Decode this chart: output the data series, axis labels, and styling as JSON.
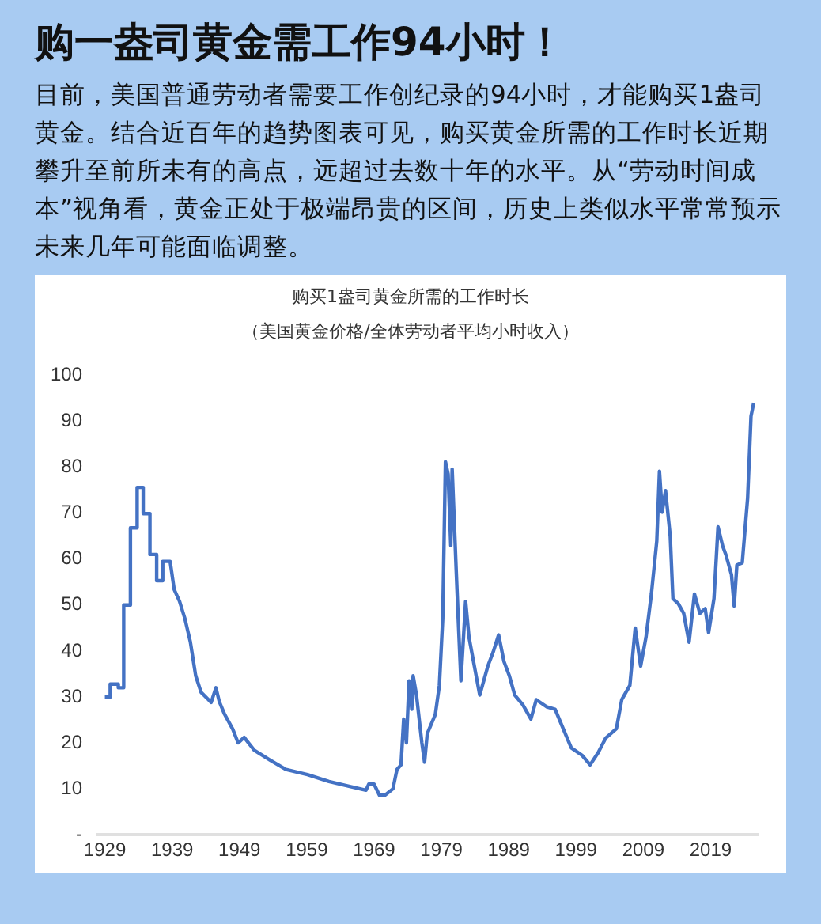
{
  "chart_data": {
    "type": "line",
    "title": "购一盎司黄金需工作94小时！",
    "subtitle": "目前，美国普通劳动者需要工作创纪录的94小时，才能购买1盎司黄金。结合近百年的趋势图表可见，购买黄金所需的工作时长近期攀升至前所未有的高点，远超过去数十年的水平。从“劳动时间成本”视角看，黄金正处于极端昂贵的区间，历史上类似水平常常预示未来几年可能面临调整。",
    "annotations": [
      "购买1盎司黄金所需的工作时长",
      "（美国黄金价格/全体劳动者平均小时收入）"
    ],
    "x": [
      1929,
      1929.8,
      1929.8,
      1931,
      1931,
      1931.8,
      1931.8,
      1932.8,
      1932.8,
      1933.8,
      1933.8,
      1934.7,
      1934.7,
      1935.7,
      1935.7,
      1936.7,
      1936.7,
      1937.6,
      1937.6,
      1938.7,
      1939.3,
      1940.1,
      1940.9,
      1941.7,
      1942.5,
      1943.3,
      1944.4,
      1944.8,
      1945.5,
      1946,
      1946.8,
      1948,
      1948.8,
      1949.7,
      1951.2,
      1953.5,
      1955.9,
      1959.1,
      1962.3,
      1965.4,
      1967.8,
      1968.2,
      1969,
      1969.8,
      1970.6,
      1971.8,
      1972.4,
      1973,
      1973.4,
      1973.8,
      1974.2,
      1974.6,
      1974.8,
      1975.3,
      1976.1,
      1976.5,
      1976.9,
      1978.1,
      1978.7,
      1979.2,
      1979.6,
      1980,
      1980.4,
      1980.6,
      1981.2,
      1981.5,
      1981.9,
      1982.6,
      1983.1,
      1983.9,
      1984.7,
      1985.1,
      1985.9,
      1986.7,
      1987.5,
      1988.3,
      1989.1,
      1989.9,
      1991.1,
      1992.3,
      1993.1,
      1994.7,
      1995.9,
      1997.1,
      1998.3,
      1999.9,
      2001.1,
      2002.3,
      2003.4,
      2005,
      2005.8,
      2007,
      2007.8,
      2008.6,
      2009.4,
      2010.2,
      2011,
      2011.4,
      2011.8,
      2012.3,
      2013,
      2013.4,
      2014.2,
      2015,
      2015.8,
      2016.6,
      2017.4,
      2018.2,
      2018.7,
      2019.5,
      2020.1,
      2020.8,
      2021.3,
      2022.1,
      2022.5,
      2022.9,
      2023.7,
      2024.5,
      2025,
      2025.4
    ],
    "series": [
      {
        "color": "#4472c4",
        "values": [
          30,
          30,
          32.8,
          32.8,
          32,
          32,
          50,
          50,
          66.8,
          66.8,
          75.6,
          75.6,
          69.9,
          69.9,
          61,
          61,
          55.3,
          55.3,
          59.5,
          59.5,
          53.4,
          50.8,
          47,
          42,
          34.6,
          31,
          29.4,
          28.8,
          32,
          29,
          26.2,
          23,
          20,
          21.2,
          18.4,
          16.3,
          14.2,
          13.1,
          11.6,
          10.5,
          9.7,
          11,
          11,
          8.6,
          8.6,
          10,
          14.2,
          15.2,
          25.2,
          20,
          33.5,
          27.3,
          34.6,
          30.4,
          20,
          15.8,
          22,
          26.2,
          32.5,
          47,
          81.2,
          78.5,
          62.9,
          79.6,
          57.6,
          47,
          33.5,
          50.8,
          43,
          36.7,
          30.4,
          32.5,
          36.7,
          39.8,
          43.5,
          37.7,
          34.6,
          30.4,
          28.3,
          25.2,
          29.4,
          27.8,
          27.3,
          23.1,
          18.9,
          17.3,
          15.2,
          17.9,
          21,
          23.1,
          29.4,
          32.5,
          45,
          36.7,
          43,
          52.4,
          63.9,
          79.1,
          70.2,
          74.9,
          65,
          51.4,
          50.3,
          48.2,
          41.9,
          52.4,
          48.2,
          49.2,
          44,
          51.4,
          67,
          62.8,
          60.8,
          56.6,
          49.8,
          58.7,
          59.2,
          73.3,
          91.1,
          94
        ]
      }
    ],
    "xlim": [
      1928,
      2026
    ],
    "xticks": [
      1929,
      1939,
      1949,
      1959,
      1969,
      1979,
      1989,
      1999,
      2009,
      2019
    ],
    "ylim": [
      0,
      100
    ],
    "yticks": [
      {
        "value": 0,
        "label": "-"
      },
      10,
      20,
      30,
      40,
      50,
      60,
      70,
      80,
      90,
      100
    ],
    "grid": false,
    "legend": false,
    "marker": "none",
    "line_style": "solid"
  }
}
